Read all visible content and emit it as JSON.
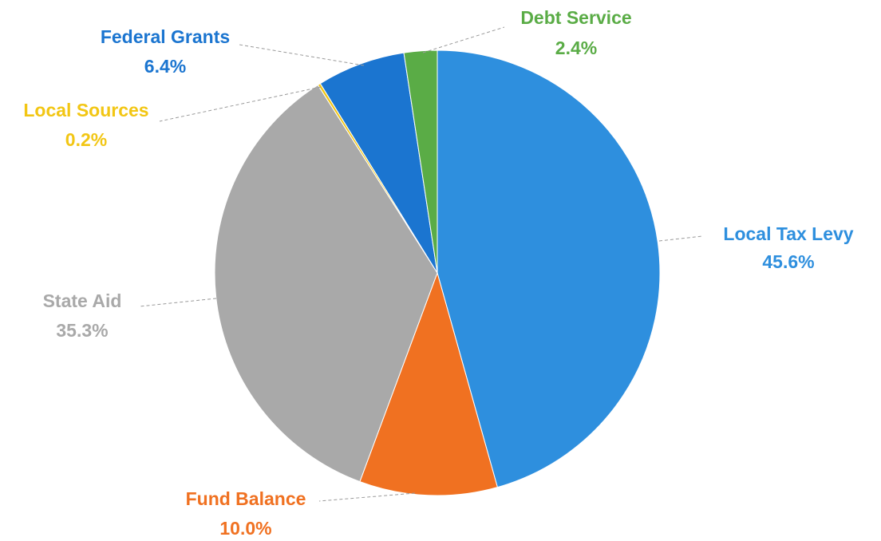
{
  "chart_data": {
    "type": "pie",
    "title": "",
    "slices": [
      {
        "label": "Local Tax Levy",
        "value": 45.6,
        "value_label": "45.6%",
        "color": "#2e8fde",
        "label_color": "#2e8fde"
      },
      {
        "label": "Fund Balance",
        "value": 10.0,
        "value_label": "10.0%",
        "color": "#f07121",
        "label_color": "#f07121"
      },
      {
        "label": "State Aid",
        "value": 35.3,
        "value_label": "35.3%",
        "color": "#a9a9a9",
        "label_color": "#a9a9a9"
      },
      {
        "label": "Local Sources",
        "value": 0.2,
        "value_label": "0.2%",
        "color": "#f2c614",
        "label_color": "#f2c614"
      },
      {
        "label": "Federal Grants",
        "value": 6.4,
        "value_label": "6.4%",
        "color": "#1b75d0",
        "label_color": "#1b75d0"
      },
      {
        "label": "Debt Service",
        "value": 2.4,
        "value_label": "2.4%",
        "color": "#5aac46",
        "label_color": "#5aac46"
      }
    ],
    "legend": "none",
    "leader_line_color": "#9a9a9a"
  }
}
